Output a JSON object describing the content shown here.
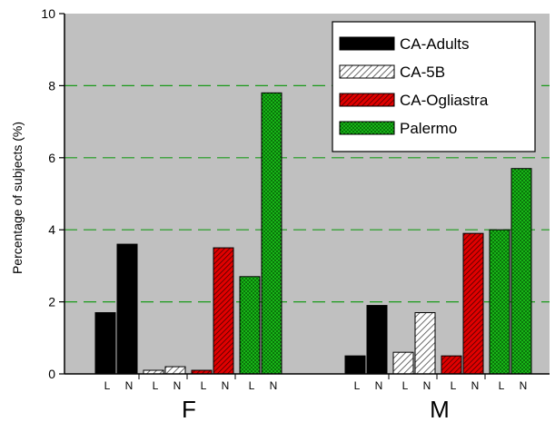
{
  "chart_data": {
    "type": "bar",
    "title": "",
    "xlabel": "",
    "ylabel": "Percentage of subjects (%)",
    "ylim": [
      0,
      10
    ],
    "yticks": [
      0,
      2,
      4,
      6,
      8,
      10
    ],
    "grid": true,
    "legend_position": "top-right",
    "groups": [
      "F",
      "M"
    ],
    "subcategories": [
      "L",
      "N"
    ],
    "series": [
      {
        "name": "CA-Adults",
        "color": "#000000",
        "pattern": "solid",
        "values": {
          "F": [
            1.7,
            3.6
          ],
          "M": [
            0.5,
            1.9
          ]
        }
      },
      {
        "name": "CA-5B",
        "color": "#ffffff",
        "pattern": "hatch-light",
        "values": {
          "F": [
            0.1,
            0.2
          ],
          "M": [
            0.6,
            1.7
          ]
        }
      },
      {
        "name": "CA-Ogliastra",
        "color": "#e00000",
        "pattern": "hatch-dark",
        "values": {
          "F": [
            0.1,
            3.5
          ],
          "M": [
            0.5,
            3.9
          ]
        }
      },
      {
        "name": "Palermo",
        "color": "#18b418",
        "pattern": "dots",
        "values": {
          "F": [
            2.7,
            7.8
          ],
          "M": [
            4.0,
            5.7
          ]
        }
      }
    ],
    "colors": {
      "plot_background": "#c0c0c0",
      "gridline": "#1a9a1a"
    }
  }
}
